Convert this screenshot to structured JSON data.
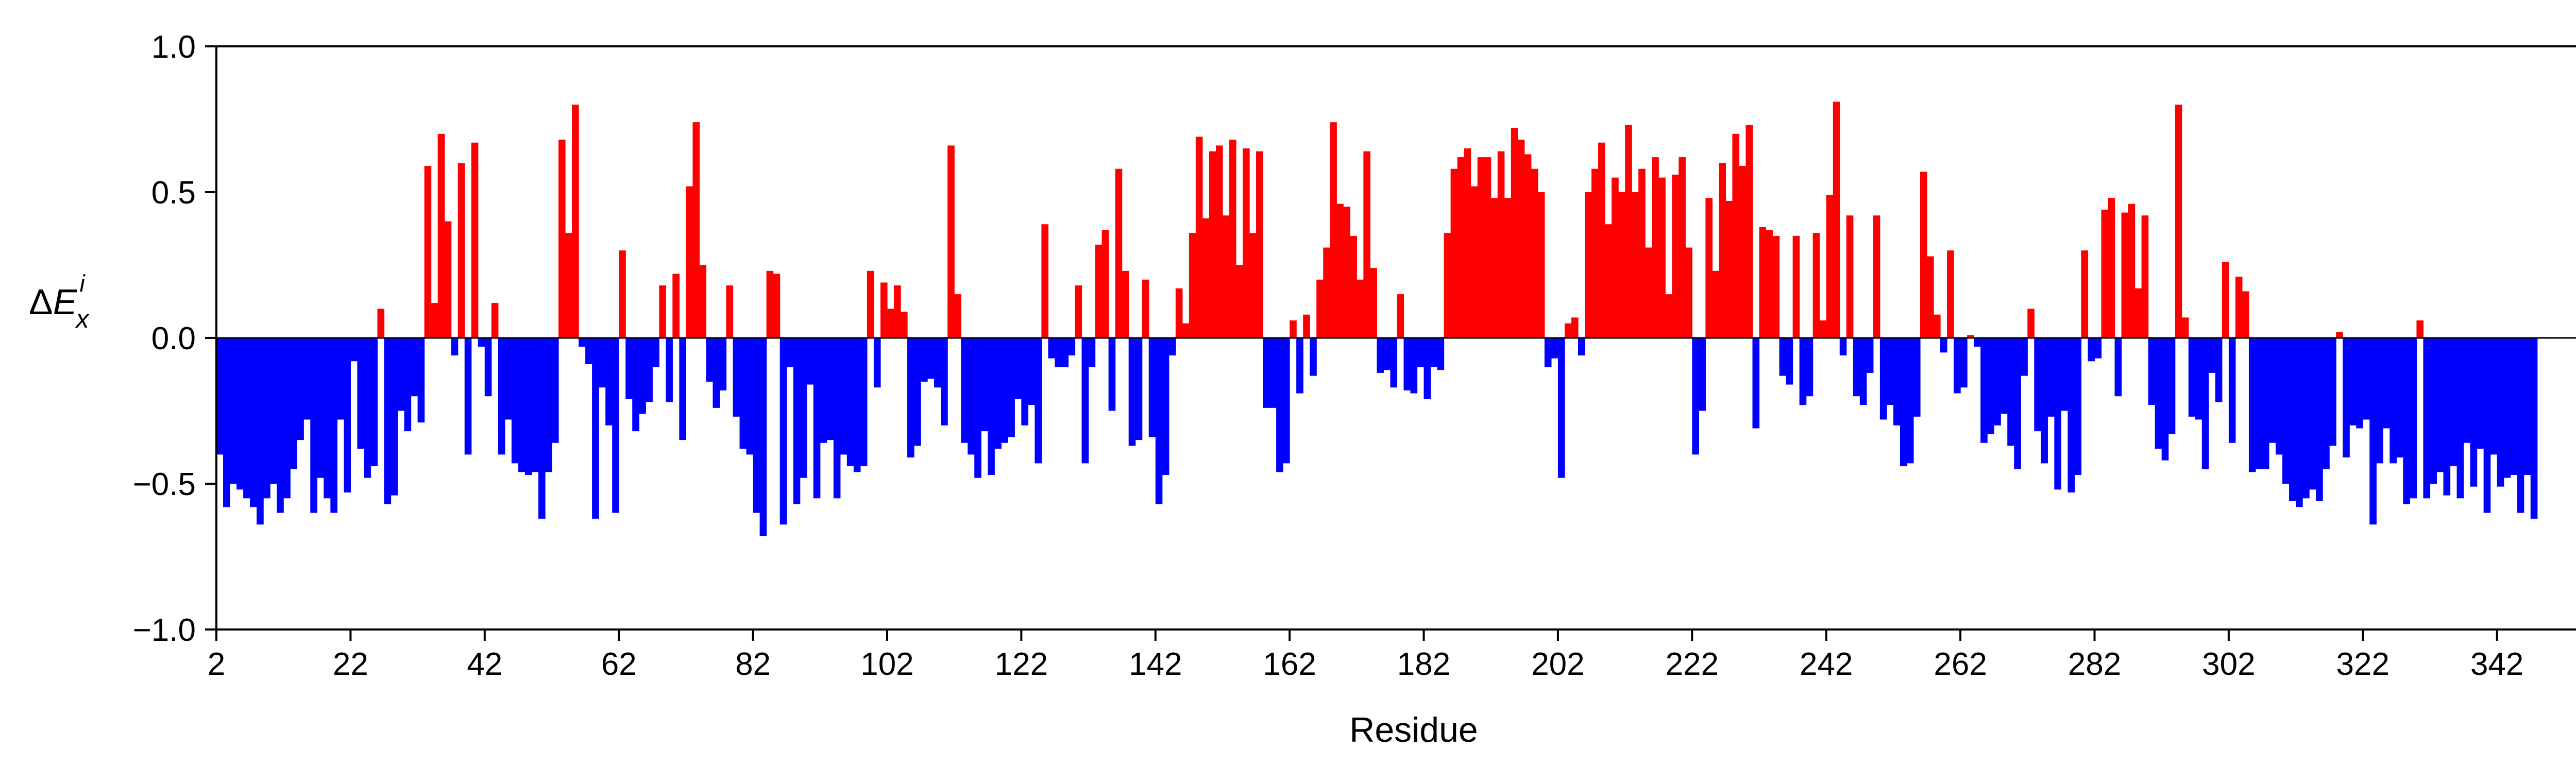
{
  "chart_data": {
    "type": "bar",
    "title": "",
    "xlabel": "Residue",
    "ylabel": "ΔE_x^i",
    "ylabel_parts": {
      "delta": "Δ",
      "letter": "E",
      "sub": "x",
      "sup": "i"
    },
    "xlim": [
      2,
      359
    ],
    "ylim": [
      -1.0,
      1.0
    ],
    "x_ticks": [
      2,
      22,
      42,
      62,
      82,
      102,
      122,
      142,
      162,
      182,
      202,
      222,
      242,
      262,
      282,
      302,
      322,
      342
    ],
    "y_ticks": [
      -1.0,
      -0.5,
      0.0,
      0.5,
      1.0
    ],
    "y_tick_labels": [
      "−1.0",
      "−0.5",
      "0.0",
      "0.5",
      "1.0"
    ],
    "grid": false,
    "legend": "none",
    "colors": {
      "positive": "#ff0000",
      "negative": "#0000ff"
    },
    "x_start": 2,
    "values": [
      -0.4,
      -0.58,
      -0.5,
      -0.52,
      -0.55,
      -0.58,
      -0.64,
      -0.55,
      -0.5,
      -0.6,
      -0.55,
      -0.45,
      -0.35,
      -0.28,
      -0.6,
      -0.48,
      -0.55,
      -0.6,
      -0.28,
      -0.53,
      -0.08,
      -0.38,
      -0.48,
      -0.44,
      0.1,
      -0.57,
      -0.54,
      -0.25,
      -0.32,
      -0.2,
      -0.29,
      0.59,
      0.12,
      0.7,
      0.4,
      -0.06,
      0.6,
      -0.4,
      0.67,
      -0.03,
      -0.2,
      0.12,
      -0.4,
      -0.28,
      -0.43,
      -0.46,
      -0.47,
      -0.46,
      -0.62,
      -0.46,
      -0.36,
      0.68,
      0.36,
      0.8,
      -0.03,
      -0.09,
      -0.62,
      -0.17,
      -0.3,
      -0.6,
      0.3,
      -0.21,
      -0.32,
      -0.26,
      -0.22,
      -0.1,
      0.18,
      -0.22,
      0.22,
      -0.35,
      0.52,
      0.74,
      0.25,
      -0.15,
      -0.24,
      -0.18,
      0.18,
      -0.27,
      -0.38,
      -0.4,
      -0.6,
      -0.68,
      0.23,
      0.22,
      -0.64,
      -0.1,
      -0.57,
      -0.48,
      -0.16,
      -0.55,
      -0.36,
      -0.35,
      -0.55,
      -0.4,
      -0.44,
      -0.46,
      -0.44,
      0.23,
      -0.17,
      0.19,
      0.1,
      0.18,
      0.09,
      -0.41,
      -0.37,
      -0.15,
      -0.14,
      -0.17,
      -0.3,
      0.66,
      0.15,
      -0.36,
      -0.4,
      -0.48,
      -0.32,
      -0.47,
      -0.38,
      -0.36,
      -0.34,
      -0.21,
      -0.3,
      -0.23,
      -0.43,
      0.39,
      -0.07,
      -0.1,
      -0.1,
      -0.06,
      0.18,
      -0.43,
      -0.1,
      0.32,
      0.37,
      -0.25,
      0.58,
      0.23,
      -0.37,
      -0.35,
      0.2,
      -0.34,
      -0.57,
      -0.47,
      -0.06,
      0.17,
      0.05,
      0.36,
      0.69,
      0.41,
      0.64,
      0.66,
      0.42,
      0.68,
      0.25,
      0.65,
      0.36,
      0.64,
      -0.24,
      -0.24,
      -0.46,
      -0.43,
      0.06,
      -0.19,
      0.08,
      -0.13,
      0.2,
      0.31,
      0.74,
      0.46,
      0.45,
      0.35,
      0.2,
      0.64,
      0.24,
      -0.12,
      -0.11,
      -0.17,
      0.15,
      -0.18,
      -0.19,
      -0.1,
      -0.21,
      -0.1,
      -0.11,
      0.36,
      0.58,
      0.62,
      0.65,
      0.52,
      0.62,
      0.62,
      0.48,
      0.64,
      0.48,
      0.72,
      0.68,
      0.63,
      0.58,
      0.5,
      -0.1,
      -0.07,
      -0.48,
      0.05,
      0.07,
      -0.06,
      0.5,
      0.58,
      0.67,
      0.39,
      0.55,
      0.5,
      0.73,
      0.5,
      0.58,
      0.31,
      0.62,
      0.55,
      0.15,
      0.56,
      0.62,
      0.31,
      -0.4,
      -0.25,
      0.48,
      0.23,
      0.6,
      0.47,
      0.7,
      0.59,
      0.73,
      -0.31,
      0.38,
      0.37,
      0.35,
      -0.13,
      -0.16,
      0.35,
      -0.23,
      -0.2,
      0.36,
      0.06,
      0.49,
      0.81,
      -0.06,
      0.42,
      -0.2,
      -0.23,
      -0.12,
      0.42,
      -0.28,
      -0.23,
      -0.3,
      -0.44,
      -0.43,
      -0.27,
      0.57,
      0.28,
      0.08,
      -0.05,
      0.3,
      -0.19,
      -0.17,
      0.01,
      -0.03,
      -0.36,
      -0.33,
      -0.3,
      -0.26,
      -0.37,
      -0.45,
      -0.13,
      0.1,
      -0.32,
      -0.43,
      -0.27,
      -0.52,
      -0.25,
      -0.53,
      -0.47,
      0.3,
      -0.08,
      -0.07,
      0.44,
      0.48,
      -0.2,
      0.43,
      0.46,
      0.17,
      0.42,
      -0.23,
      -0.38,
      -0.42,
      -0.33,
      0.8,
      0.07,
      -0.27,
      -0.28,
      -0.45,
      -0.12,
      -0.22,
      0.26,
      -0.36,
      0.21,
      0.16,
      -0.46,
      -0.45,
      -0.45,
      -0.36,
      -0.4,
      -0.5,
      -0.56,
      -0.58,
      -0.55,
      -0.52,
      -0.56,
      -0.45,
      -0.37,
      0.02,
      -0.41,
      -0.3,
      -0.31,
      -0.28,
      -0.64,
      -0.43,
      -0.31,
      -0.43,
      -0.41,
      -0.57,
      -0.55,
      0.06,
      -0.55,
      -0.5,
      -0.46,
      -0.54,
      -0.44,
      -0.55,
      -0.36,
      -0.51,
      -0.38,
      -0.6,
      -0.4,
      -0.51,
      -0.48,
      -0.47,
      -0.6,
      -0.47,
      -0.62
    ]
  }
}
